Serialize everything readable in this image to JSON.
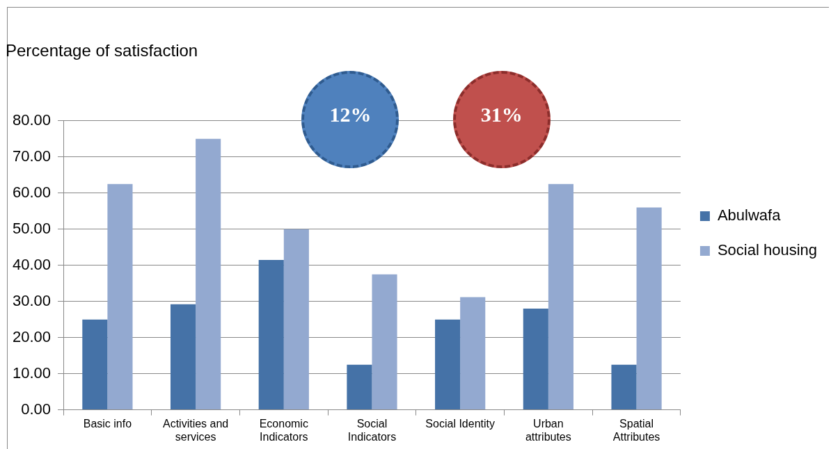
{
  "chart_data": {
    "type": "bar",
    "title": "Percentage of satisfaction",
    "categories": [
      "Basic info",
      "Activities and services",
      "Economic Indicators",
      "Social Indicators",
      "Social Identity",
      "Urban attributes",
      "Spatial Attributes"
    ],
    "series": [
      {
        "name": "Abulwafa",
        "color": "#4572a7",
        "values": [
          25,
          29.2,
          41.5,
          12.5,
          25,
          28,
          12.5
        ]
      },
      {
        "name": "Social housing",
        "color": "#93a9d0",
        "values": [
          62.5,
          75,
          50,
          37.5,
          31.2,
          62.5,
          56
        ]
      }
    ],
    "ylim": [
      0,
      80
    ],
    "yticks": [
      {
        "value": 0,
        "label": "0.00"
      },
      {
        "value": 10,
        "label": "10.00"
      },
      {
        "value": 20,
        "label": "20.00"
      },
      {
        "value": 30,
        "label": "30.00"
      },
      {
        "value": 40,
        "label": "40.00"
      },
      {
        "value": 50,
        "label": "50.00"
      },
      {
        "value": 60,
        "label": "60.00"
      },
      {
        "value": 70,
        "label": "70.00"
      },
      {
        "value": 80,
        "label": "80.00"
      }
    ],
    "grid": "y",
    "legend": "right",
    "annotations": [
      "12%",
      "31%"
    ]
  }
}
